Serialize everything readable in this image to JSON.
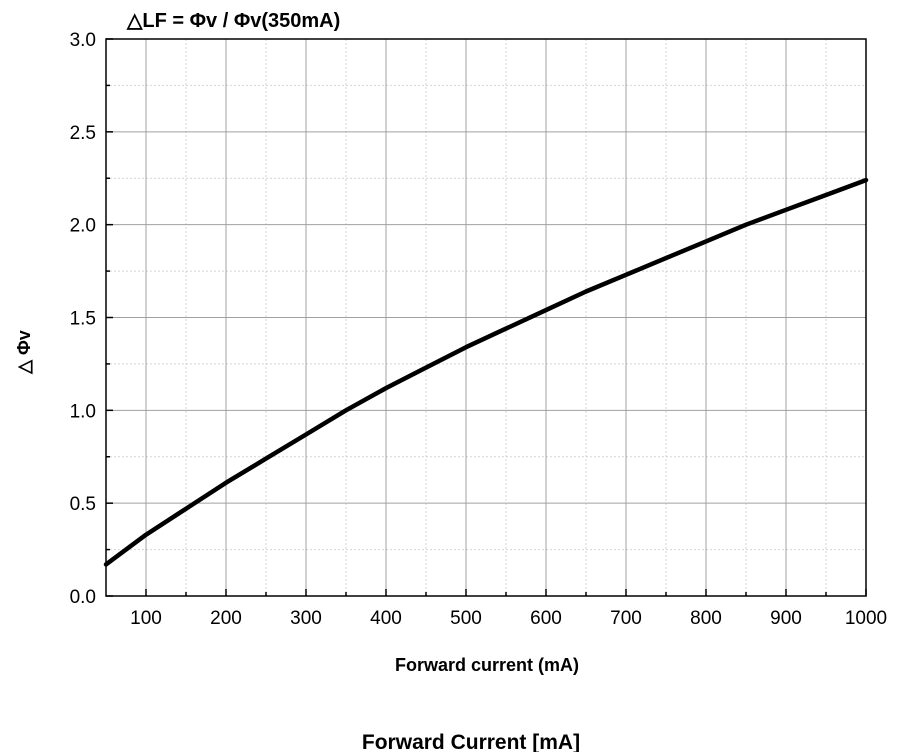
{
  "chart_data": {
    "type": "line",
    "title": "△LF = Φv / Φv(350mA)",
    "xlabel": "Forward current (mA)",
    "ylabel": "△ Φv",
    "footer_label": "Forward Current [mA]",
    "xlim": [
      50,
      1000
    ],
    "ylim": [
      0.0,
      3.0
    ],
    "x_ticks": [
      100,
      200,
      300,
      400,
      500,
      600,
      700,
      800,
      900,
      1000
    ],
    "x_tick_labels": [
      "100",
      "200",
      "300",
      "400",
      "500",
      "600",
      "700",
      "800",
      "900",
      "1000"
    ],
    "y_ticks": [
      0.0,
      0.5,
      1.0,
      1.5,
      2.0,
      2.5,
      3.0
    ],
    "y_tick_labels": [
      "0.0",
      "0.5",
      "1.0",
      "1.5",
      "2.0",
      "2.5",
      "3.0"
    ],
    "grid": true,
    "series": [
      {
        "color": "#000000",
        "x": [
          50,
          100,
          150,
          200,
          250,
          300,
          350,
          400,
          450,
          500,
          550,
          600,
          650,
          700,
          750,
          800,
          850,
          900,
          950,
          1000
        ],
        "y": [
          0.17,
          0.33,
          0.47,
          0.61,
          0.74,
          0.87,
          1.0,
          1.12,
          1.23,
          1.34,
          1.44,
          1.54,
          1.64,
          1.73,
          1.82,
          1.91,
          2.0,
          2.08,
          2.16,
          2.24
        ]
      }
    ]
  }
}
